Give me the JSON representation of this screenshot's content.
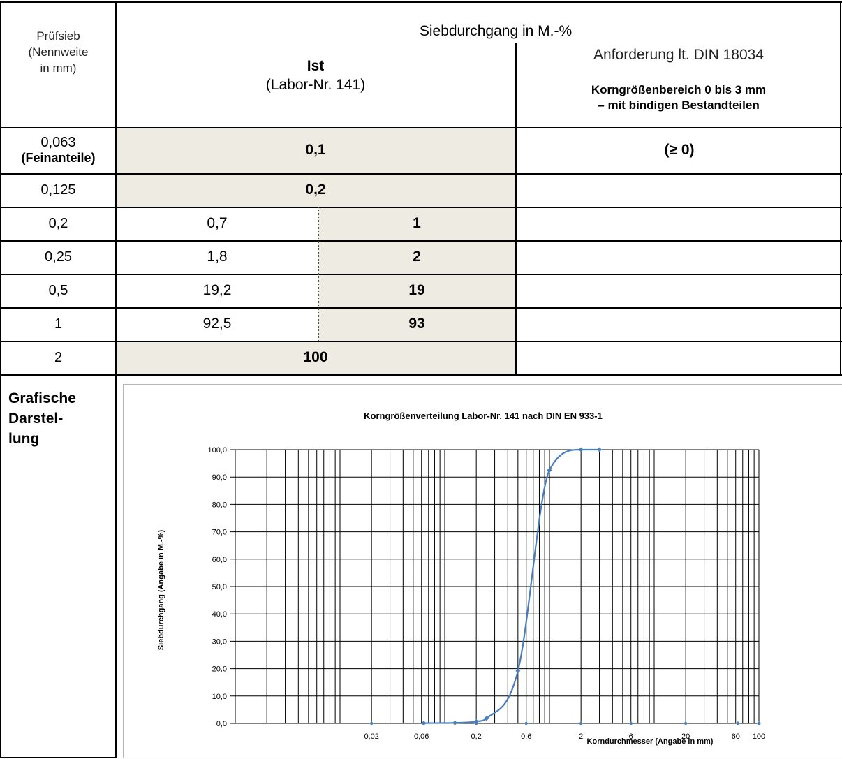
{
  "header": {
    "col1": [
      "Prüfsieb",
      "(Nennweite",
      "in mm)"
    ],
    "span_title": "Siebdurchgang in M.-%",
    "ist_label": "Ist",
    "ist_sub": "(Labor-Nr. 141)",
    "req_title": "Anforderung lt. DIN 18034",
    "req_line1": "Korngrößenbereich 0 bis 3 mm",
    "req_line2": "– mit bindigen Bestandteilen"
  },
  "rows": [
    {
      "sieve": "0,063",
      "sieve_note": "(Feinanteile)",
      "merged": "0,1",
      "req": "(≥ 0)"
    },
    {
      "sieve": "0,125",
      "merged": "0,2"
    },
    {
      "sieve": "0,2",
      "ist": "0,7",
      "rounded": "1"
    },
    {
      "sieve": "0,25",
      "ist": "1,8",
      "rounded": "2"
    },
    {
      "sieve": "0,5",
      "ist": "19,2",
      "rounded": "19"
    },
    {
      "sieve": "1",
      "ist": "92,5",
      "rounded": "93"
    },
    {
      "sieve": "2",
      "merged": "100"
    }
  ],
  "graph_label": [
    "Grafische",
    "Darstel-",
    "lung"
  ],
  "chart_data": {
    "type": "line",
    "title": "Korngrößenverteilung Labor-Nr. 141 nach DIN EN 933-1",
    "xlabel": "Korndurchmesser (Angabe in mm)",
    "ylabel": "Siebdurchgang (Angabe in M.-%)",
    "x_scale": "log",
    "xlim": [
      0.001,
      100
    ],
    "ylim": [
      0,
      100
    ],
    "y_ticks": [
      "0,0",
      "10,0",
      "20,0",
      "30,0",
      "40,0",
      "50,0",
      "60,0",
      "70,0",
      "80,0",
      "90,0",
      "100,0"
    ],
    "x_tick_labels": [
      {
        "x": 0.02,
        "label": "0,02"
      },
      {
        "x": 0.06,
        "label": "0,06"
      },
      {
        "x": 0.2,
        "label": "0,2"
      },
      {
        "x": 0.6,
        "label": "0,6"
      },
      {
        "x": 2,
        "label": "2"
      },
      {
        "x": 6,
        "label": "6"
      },
      {
        "x": 20,
        "label": "20"
      },
      {
        "x": 60,
        "label": "60"
      },
      {
        "x": 100,
        "label": "100"
      }
    ],
    "grid": true,
    "series_color": "#4a7ebb",
    "axis_markers": [
      0.02,
      0.063,
      0.2,
      0.6,
      2,
      6,
      20,
      63,
      100
    ],
    "x": [
      0.063,
      0.125,
      0.2,
      0.25,
      0.5,
      1,
      2,
      3
    ],
    "y": [
      0.1,
      0.2,
      0.7,
      1.8,
      19.2,
      92.5,
      100,
      100
    ]
  }
}
